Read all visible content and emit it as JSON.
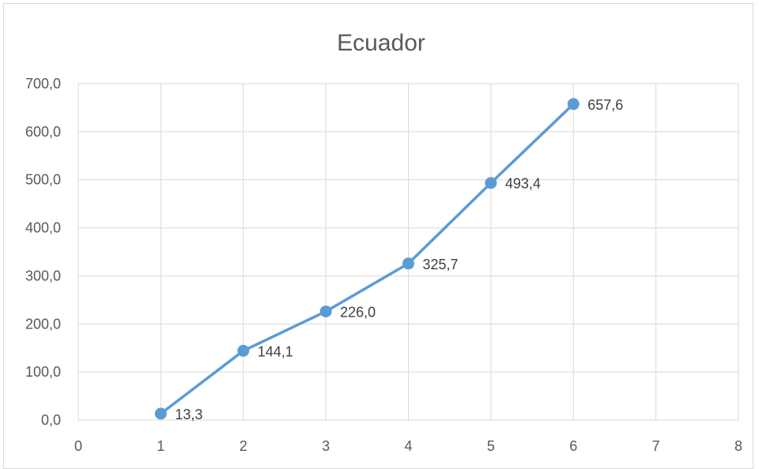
{
  "chart_data": {
    "type": "scatter",
    "title": "Ecuador",
    "xlabel": "",
    "ylabel": "",
    "xlim": [
      0,
      8
    ],
    "ylim": [
      0,
      700
    ],
    "xticks": [
      0,
      1,
      2,
      3,
      4,
      5,
      6,
      7,
      8
    ],
    "yticks": [
      0,
      100,
      200,
      300,
      400,
      500,
      600,
      700
    ],
    "xtick_labels": [
      "0",
      "1",
      "2",
      "3",
      "4",
      "5",
      "6",
      "7",
      "8"
    ],
    "ytick_labels": [
      "0,0",
      "100,0",
      "200,0",
      "300,0",
      "400,0",
      "500,0",
      "600,0",
      "700,0"
    ],
    "grid": true,
    "legend": "none",
    "series": [
      {
        "x": [
          1,
          2,
          3,
          4,
          5,
          6
        ],
        "y": [
          13.3,
          144.1,
          226.0,
          325.7,
          493.4,
          657.6
        ],
        "labels": [
          "13,3",
          "144,1",
          "226,0",
          "325,7",
          "493,4",
          "657,6"
        ],
        "color": "#5b9bd5",
        "line": true,
        "markers": true
      }
    ],
    "grid_color": "#d9d9d9",
    "text_color": "#595959"
  }
}
